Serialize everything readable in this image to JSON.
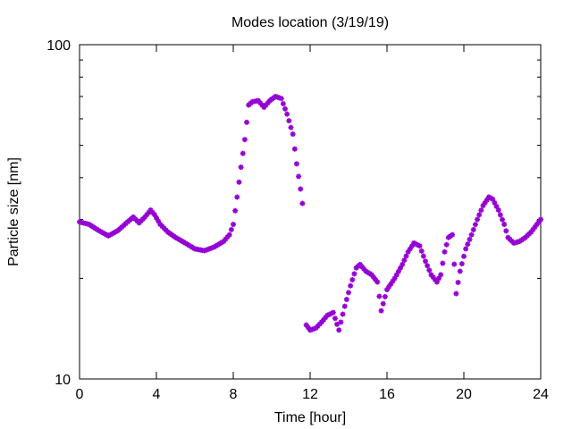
{
  "chart_data": {
    "type": "scatter",
    "title": "Modes location (3/19/19)",
    "xlabel": "Time [hour]",
    "ylabel": "Particle size [nm]",
    "xlim": [
      0,
      24
    ],
    "ylim": [
      10,
      100
    ],
    "yscale": "log",
    "x_ticks": [
      0,
      4,
      8,
      12,
      16,
      20,
      24
    ],
    "x_tick_labels": [
      "0",
      "4",
      "8",
      "12",
      "16",
      "20",
      "24"
    ],
    "y_tick_labels": [
      "10",
      "100"
    ],
    "grid": false,
    "marker_color": "#9400d3",
    "series": [
      {
        "x": [
          0.0,
          0.5,
          1.0,
          1.5,
          2.0,
          2.5,
          2.8,
          3.1,
          3.4,
          3.7,
          3.9,
          4.2,
          4.6,
          5.0,
          5.5,
          6.0,
          6.5,
          7.0,
          7.5,
          7.8,
          8.0,
          8.2,
          8.4,
          8.6,
          8.8,
          9.0,
          9.3,
          9.6,
          9.9,
          10.2,
          10.5,
          10.8,
          11.1,
          11.3,
          11.5,
          11.6
        ],
        "y": [
          29.5,
          29.0,
          27.8,
          26.8,
          27.8,
          29.5,
          30.5,
          29.3,
          30.5,
          32.0,
          31.0,
          29.0,
          27.5,
          26.5,
          25.5,
          24.5,
          24.2,
          24.8,
          25.8,
          27.0,
          29.0,
          35.0,
          43.0,
          52.0,
          66.0,
          67.5,
          68.0,
          65.0,
          68.0,
          70.0,
          69.0,
          62.0,
          54.0,
          44.0,
          37.0,
          33.5
        ]
      },
      {
        "x": [
          11.8,
          12.0,
          12.3,
          12.6,
          12.9,
          13.2,
          13.5,
          13.8,
          14.1,
          14.4,
          14.6,
          14.9,
          15.2,
          15.5,
          15.7,
          16.0,
          16.4,
          16.8,
          17.1,
          17.4,
          17.7,
          18.0,
          18.3,
          18.6,
          18.8,
          19.0,
          19.2,
          19.4,
          19.6,
          19.8,
          20.1,
          20.4,
          20.7,
          21.0,
          21.3,
          21.5,
          21.8,
          22.1,
          22.3,
          22.6,
          22.9,
          23.2,
          23.5,
          23.8,
          24.0
        ],
        "y": [
          14.5,
          14.0,
          14.2,
          14.8,
          15.5,
          15.8,
          14.0,
          16.5,
          19.0,
          21.5,
          22.0,
          21.0,
          20.5,
          19.5,
          16.0,
          18.5,
          20.0,
          22.0,
          24.0,
          25.5,
          25.0,
          22.5,
          20.5,
          19.5,
          20.5,
          24.0,
          26.5,
          27.0,
          18.0,
          21.0,
          24.5,
          27.0,
          30.0,
          33.0,
          35.0,
          34.5,
          32.0,
          29.0,
          26.5,
          25.5,
          25.8,
          26.5,
          27.5,
          29.0,
          30.0
        ]
      }
    ]
  }
}
